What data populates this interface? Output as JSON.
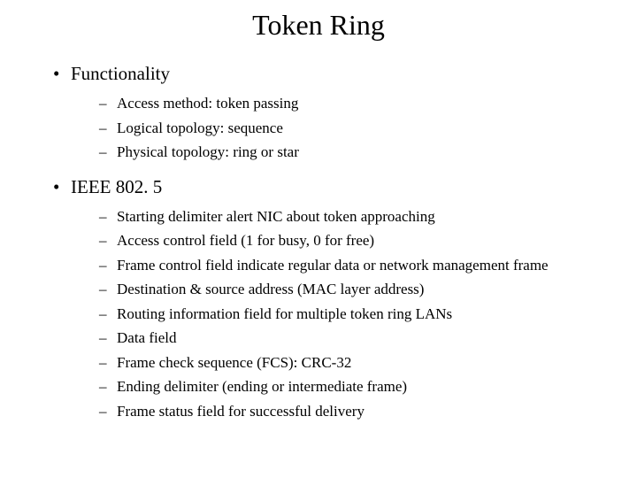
{
  "slide": {
    "title": "Token Ring",
    "title_fontsize": 32,
    "body_l1_fontsize": 21,
    "body_l2_fontsize": 17,
    "background_color": "#ffffff",
    "text_color": "#000000",
    "font_family": "Times New Roman",
    "sections": [
      {
        "heading": "Functionality",
        "items": [
          "Access method: token passing",
          "Logical topology: sequence",
          "Physical topology: ring or star"
        ]
      },
      {
        "heading": "IEEE 802. 5",
        "items": [
          "Starting delimiter alert NIC about token approaching",
          "Access control field (1 for busy, 0 for free)",
          "Frame control field indicate regular data or network management frame",
          "Destination & source address (MAC layer address)",
          "Routing information field for multiple token ring LANs",
          "Data field",
          "Frame check sequence (FCS): CRC-32",
          "Ending delimiter (ending or intermediate frame)",
          "Frame status field for successful delivery"
        ]
      }
    ]
  }
}
